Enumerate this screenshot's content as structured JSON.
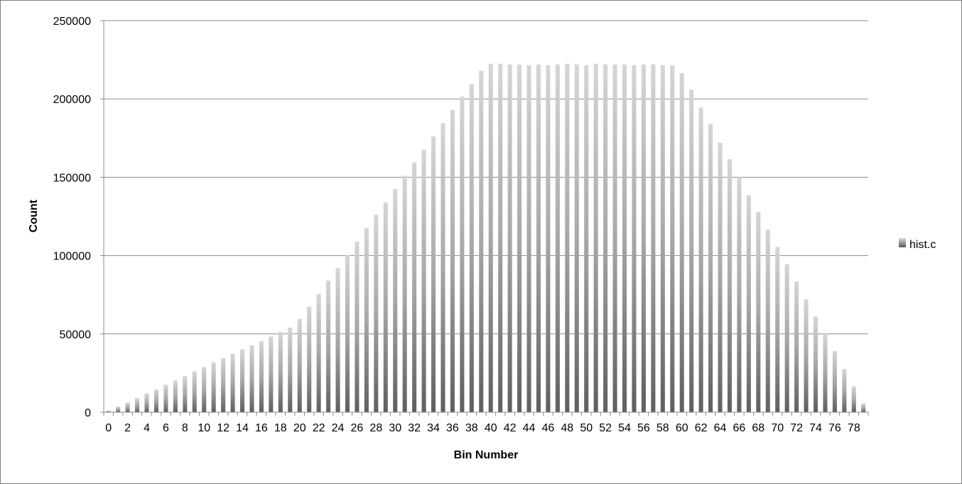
{
  "chart_data": {
    "type": "bar",
    "title": "",
    "xlabel": "Bin Number",
    "ylabel": "Count",
    "ylim": [
      0,
      250000
    ],
    "yticks": [
      0,
      50000,
      100000,
      150000,
      200000,
      250000
    ],
    "grid": true,
    "legend_position": "right",
    "categories": [
      0,
      1,
      2,
      3,
      4,
      5,
      6,
      7,
      8,
      9,
      10,
      11,
      12,
      13,
      14,
      15,
      16,
      17,
      18,
      19,
      20,
      21,
      22,
      23,
      24,
      25,
      26,
      27,
      28,
      29,
      30,
      31,
      32,
      33,
      34,
      35,
      36,
      37,
      38,
      39,
      40,
      41,
      42,
      43,
      44,
      45,
      46,
      47,
      48,
      49,
      50,
      51,
      52,
      53,
      54,
      55,
      56,
      57,
      58,
      59,
      60,
      61,
      62,
      63,
      64,
      65,
      66,
      67,
      68,
      69,
      70,
      71,
      72,
      73,
      74,
      75,
      76,
      77,
      78,
      79
    ],
    "x_tick_labels": [
      "0",
      "2",
      "4",
      "6",
      "8",
      "10",
      "12",
      "14",
      "16",
      "18",
      "20",
      "22",
      "24",
      "26",
      "28",
      "30",
      "32",
      "34",
      "36",
      "38",
      "40",
      "42",
      "44",
      "46",
      "48",
      "50",
      "52",
      "54",
      "56",
      "58",
      "60",
      "62",
      "64",
      "66",
      "68",
      "70",
      "72",
      "74",
      "76",
      "78"
    ],
    "series": [
      {
        "name": "hist.c",
        "color": "#9a9a9a",
        "values": [
          1000,
          3500,
          6200,
          9000,
          12000,
          14500,
          17500,
          20200,
          23000,
          26000,
          28800,
          31800,
          34500,
          37300,
          40000,
          42700,
          45500,
          48300,
          51200,
          54000,
          59500,
          67500,
          75500,
          84000,
          92000,
          100500,
          109000,
          117500,
          126000,
          134000,
          142500,
          151000,
          159500,
          167500,
          176000,
          184500,
          193000,
          201500,
          209500,
          218000,
          222500,
          222500,
          222000,
          222000,
          221500,
          222000,
          221500,
          222000,
          222500,
          222000,
          221500,
          222500,
          222000,
          222000,
          222000,
          221500,
          222000,
          222000,
          221500,
          221500,
          216500,
          206000,
          194500,
          184000,
          172000,
          161500,
          150000,
          138500,
          128000,
          116500,
          105500,
          94500,
          83500,
          72000,
          61000,
          50000,
          39000,
          27500,
          16500,
          5500
        ]
      }
    ]
  }
}
